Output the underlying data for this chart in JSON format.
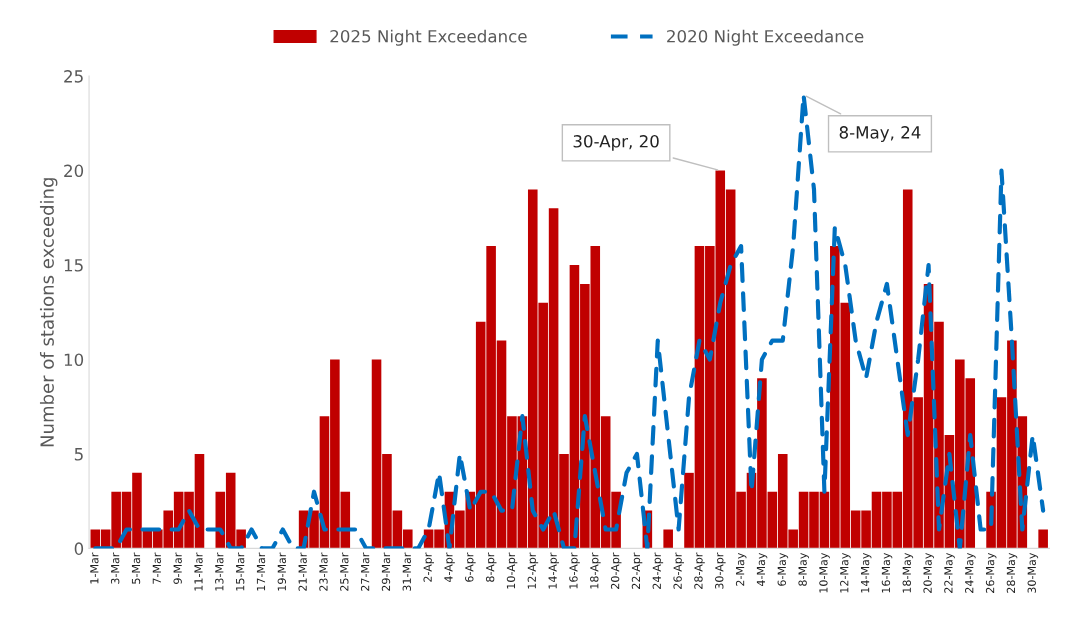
{
  "chart_data": {
    "type": "bar",
    "categories": [
      "1-Mar",
      null,
      "3-Mar",
      null,
      "5-Mar",
      null,
      "7-Mar",
      null,
      "9-Mar",
      null,
      "11-Mar",
      null,
      "13-Mar",
      null,
      "15-Mar",
      null,
      "17-Mar",
      null,
      "19-Mar",
      null,
      "21-Mar",
      null,
      "23-Mar",
      null,
      "25-Mar",
      null,
      "27-Mar",
      null,
      "29-Mar",
      null,
      "31-Mar",
      null,
      "2-Apr",
      null,
      "4-Apr",
      null,
      "6-Apr",
      null,
      "8-Apr",
      null,
      "10-Apr",
      null,
      "12-Apr",
      null,
      "14-Apr",
      null,
      "16-Apr",
      null,
      "18-Apr",
      null,
      "20-Apr",
      null,
      "22-Apr",
      null,
      "24-Apr",
      null,
      "26-Apr",
      null,
      "28-Apr",
      null,
      "30-Apr",
      null,
      "2-May",
      null,
      "4-May",
      null,
      "6-May",
      null,
      "8-May",
      null,
      "10-May",
      null,
      "12-May",
      null,
      "14-May",
      null,
      "16-May",
      null,
      "18-May",
      null,
      "20-May",
      null,
      "22-May",
      null,
      "24-May",
      null,
      "26-May",
      null,
      "28-May",
      null,
      "30-May",
      null
    ],
    "series": [
      {
        "name": "2025 Night Exceedance",
        "color": "#c00000",
        "values": [
          1,
          1,
          3,
          3,
          4,
          1,
          1,
          2,
          3,
          3,
          5,
          0,
          3,
          4,
          1,
          0,
          0,
          0,
          0,
          0,
          2,
          2,
          7,
          10,
          3,
          0,
          0,
          10,
          5,
          2,
          1,
          0,
          1,
          1,
          3,
          2,
          3,
          12,
          16,
          11,
          7,
          7,
          19,
          13,
          18,
          5,
          15,
          14,
          16,
          7,
          3,
          0,
          0,
          2,
          0,
          1,
          0,
          4,
          16,
          16,
          20,
          19,
          3,
          4,
          9,
          3,
          5,
          1,
          3,
          3,
          3,
          16,
          13,
          2,
          2,
          3,
          3,
          3,
          19,
          8,
          14,
          12,
          6,
          10,
          9,
          0,
          3,
          8,
          11,
          7,
          0,
          1
        ]
      },
      {
        "name": "2020 Night Exceedance",
        "type": "line",
        "color": "#0070c0",
        "line_style": "dashed",
        "values": [
          0,
          0,
          0,
          1,
          1,
          1,
          1,
          1,
          1,
          2,
          1,
          1,
          1,
          0,
          0,
          1,
          0,
          0,
          1,
          0,
          0,
          3,
          1,
          1,
          1,
          1,
          0,
          0,
          0,
          0,
          0,
          0,
          1,
          4,
          0,
          5,
          2,
          3,
          3,
          2,
          2,
          7,
          2,
          1,
          2,
          0,
          0,
          7,
          4,
          1,
          1,
          4,
          5,
          0,
          11,
          6,
          1,
          8,
          11,
          10,
          13,
          15,
          16,
          3,
          10,
          11,
          11,
          16,
          24,
          19,
          3,
          17,
          15,
          11,
          9,
          12,
          14,
          10,
          6,
          10,
          15,
          1,
          5,
          0,
          6,
          1,
          1,
          20,
          11,
          1,
          6,
          2
        ]
      }
    ],
    "ylabel": "Number of stations exceeding",
    "ylim": [
      0,
      25
    ],
    "yticks": [
      0,
      5,
      10,
      15,
      20,
      25
    ],
    "grid": false,
    "legend": "top",
    "annotations": [
      {
        "text": "30-Apr, 20",
        "x": "30-Apr",
        "y": 20
      },
      {
        "text": "8-May, 24",
        "x": "8-May",
        "y": 24
      }
    ]
  }
}
